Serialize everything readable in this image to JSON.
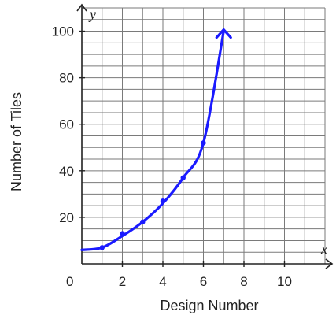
{
  "chart_data": {
    "type": "line",
    "title": "",
    "xlabel": "Design Number",
    "ylabel": "Number of Tiles",
    "x_axis_var": "x",
    "y_axis_var": "y",
    "origin_label": "0",
    "xlim": [
      0,
      12
    ],
    "ylim": [
      0,
      110
    ],
    "x_ticks": [
      2,
      4,
      6,
      8,
      10
    ],
    "y_ticks": [
      20,
      40,
      60,
      80,
      100
    ],
    "grid": true,
    "line_color": "#1a1aff",
    "series": [
      {
        "points": [
          [
            1,
            7
          ],
          [
            2,
            13
          ],
          [
            3,
            18
          ],
          [
            4,
            27
          ],
          [
            5,
            37
          ],
          [
            6,
            52
          ]
        ],
        "curve": [
          [
            0,
            6
          ],
          [
            1,
            7
          ],
          [
            2,
            12
          ],
          [
            3,
            18
          ],
          [
            4,
            26
          ],
          [
            5,
            37
          ],
          [
            6,
            52
          ],
          [
            7,
            100
          ]
        ]
      }
    ]
  }
}
